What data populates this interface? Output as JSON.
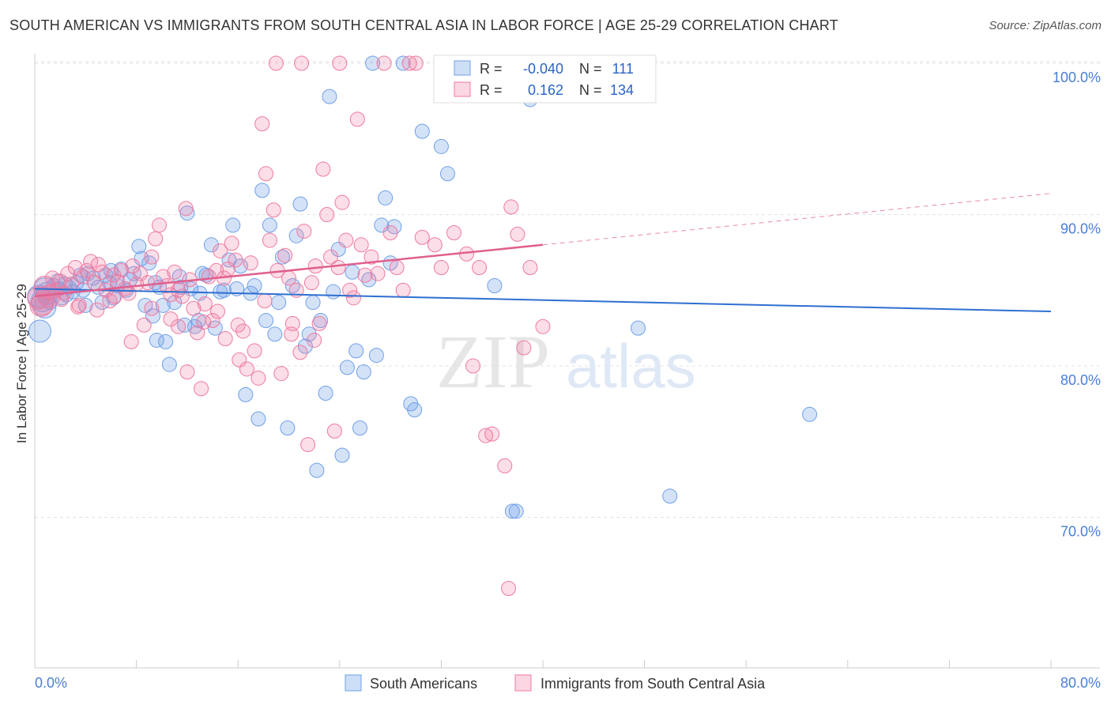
{
  "header": {
    "title": "SOUTH AMERICAN VS IMMIGRANTS FROM SOUTH CENTRAL ASIA IN LABOR FORCE | AGE 25-29 CORRELATION CHART",
    "source": "Source: ZipAtlas.com"
  },
  "watermark": {
    "zip": "ZIP",
    "atlas": "atlas"
  },
  "stats": {
    "r_label": "R =",
    "n_label": "N =",
    "rows": [
      {
        "r": "-0.040",
        "n": "111",
        "color": "#6fa0e8"
      },
      {
        "r": "0.162",
        "n": "134",
        "color": "#f07aa0"
      }
    ]
  },
  "chart_data": {
    "type": "scatter",
    "title": "SOUTH AMERICAN VS IMMIGRANTS FROM SOUTH CENTRAL ASIA IN LABOR FORCE | AGE 25-29 CORRELATION CHART",
    "xlabel": "",
    "ylabel": "In Labor Force | Age 25-29",
    "xlim": [
      0,
      80
    ],
    "ylim": [
      60,
      101.5
    ],
    "x_tick_labels": [
      "0.0%",
      "80.0%"
    ],
    "y_ticks": [
      70,
      80,
      90,
      100
    ],
    "y_tick_labels": [
      "70.0%",
      "80.0%",
      "90.0%",
      "100.0%"
    ],
    "grid": true,
    "legend_position": "bottom",
    "series": [
      {
        "name": "South Americans",
        "color": "#6fa0e8",
        "fill": "rgba(111,160,232,0.30)",
        "trend": {
          "x": [
            0,
            80
          ],
          "y": [
            85.1,
            83.6
          ],
          "dashed_from": null
        },
        "points": [
          [
            0.3,
            84.6
          ],
          [
            0.4,
            82.3
          ],
          [
            0.6,
            84.3
          ],
          [
            0.8,
            85.1
          ],
          [
            1.0,
            84.8
          ],
          [
            1.2,
            84.2
          ],
          [
            1.5,
            85.3
          ],
          [
            1.8,
            85.6
          ],
          [
            2.1,
            84.5
          ],
          [
            2.4,
            85.4
          ],
          [
            2.7,
            85.2
          ],
          [
            3.0,
            84.9
          ],
          [
            3.3,
            85.5
          ],
          [
            3.6,
            86.0
          ],
          [
            4.0,
            84.0
          ],
          [
            4.2,
            86.1
          ],
          [
            4.6,
            85.8
          ],
          [
            5.0,
            85.2
          ],
          [
            5.3,
            84.2
          ],
          [
            5.6,
            86.0
          ],
          [
            5.9,
            85.5
          ],
          [
            6.2,
            84.5
          ],
          [
            6.5,
            85.3
          ],
          [
            6.8,
            86.4
          ],
          [
            7.2,
            85.0
          ],
          [
            7.5,
            85.7
          ],
          [
            7.8,
            86.1
          ],
          [
            8.2,
            87.9
          ],
          [
            8.4,
            87.1
          ],
          [
            8.7,
            84.0
          ],
          [
            9.0,
            86.8
          ],
          [
            9.3,
            83.3
          ],
          [
            9.6,
            81.7
          ],
          [
            9.8,
            85.2
          ],
          [
            10.1,
            84.0
          ],
          [
            10.3,
            81.6
          ],
          [
            10.6,
            80.1
          ],
          [
            11.0,
            84.2
          ],
          [
            11.4,
            85.9
          ],
          [
            11.8,
            82.7
          ],
          [
            12.0,
            90.1
          ],
          [
            12.3,
            85.1
          ],
          [
            12.6,
            82.6
          ],
          [
            12.9,
            83.0
          ],
          [
            13.2,
            86.1
          ],
          [
            13.5,
            86.0
          ],
          [
            13.9,
            88.0
          ],
          [
            14.2,
            82.5
          ],
          [
            14.6,
            84.9
          ],
          [
            14.9,
            85.0
          ],
          [
            15.3,
            87.0
          ],
          [
            15.6,
            89.3
          ],
          [
            15.9,
            85.1
          ],
          [
            16.2,
            86.6
          ],
          [
            16.6,
            78.1
          ],
          [
            17.0,
            84.8
          ],
          [
            17.3,
            85.3
          ],
          [
            17.6,
            76.5
          ],
          [
            17.9,
            91.6
          ],
          [
            18.2,
            83.0
          ],
          [
            18.5,
            89.3
          ],
          [
            18.9,
            82.1
          ],
          [
            19.2,
            84.2
          ],
          [
            19.5,
            87.2
          ],
          [
            19.9,
            75.9
          ],
          [
            20.3,
            85.3
          ],
          [
            20.6,
            88.6
          ],
          [
            20.9,
            90.7
          ],
          [
            21.3,
            81.3
          ],
          [
            21.6,
            82.1
          ],
          [
            21.9,
            84.2
          ],
          [
            22.2,
            73.1
          ],
          [
            22.5,
            83.0
          ],
          [
            22.9,
            78.2
          ],
          [
            23.2,
            97.8
          ],
          [
            23.5,
            84.9
          ],
          [
            23.9,
            87.7
          ],
          [
            24.2,
            74.1
          ],
          [
            24.6,
            79.9
          ],
          [
            25.0,
            86.2
          ],
          [
            25.3,
            81.0
          ],
          [
            25.6,
            75.9
          ],
          [
            25.9,
            79.6
          ],
          [
            26.3,
            85.7
          ],
          [
            26.6,
            100.0
          ],
          [
            26.9,
            80.7
          ],
          [
            27.3,
            89.3
          ],
          [
            27.6,
            91.1
          ],
          [
            28.0,
            86.8
          ],
          [
            28.3,
            89.2
          ],
          [
            29.0,
            100.0
          ],
          [
            29.6,
            77.5
          ],
          [
            29.9,
            77.1
          ],
          [
            30.5,
            95.5
          ],
          [
            32.0,
            94.5
          ],
          [
            32.5,
            92.7
          ],
          [
            36.2,
            85.3
          ],
          [
            37.6,
            70.4
          ],
          [
            37.9,
            70.4
          ],
          [
            39.0,
            97.6
          ],
          [
            47.5,
            82.5
          ],
          [
            50.0,
            71.4
          ],
          [
            61.0,
            76.8
          ],
          [
            9.5,
            85.5
          ],
          [
            11.5,
            85.2
          ],
          [
            13.0,
            84.8
          ],
          [
            6.0,
            86.3
          ],
          [
            3.8,
            85.0
          ],
          [
            2.5,
            84.7
          ],
          [
            1.9,
            85.1
          ],
          [
            0.8,
            83.9
          ]
        ]
      },
      {
        "name": "Immigrants from South Central Asia",
        "color": "#f07aa0",
        "fill": "rgba(240,122,160,0.25)",
        "trend": {
          "x": [
            0,
            80
          ],
          "y": [
            84.6,
            91.4
          ],
          "dashed_from": 40
        },
        "points": [
          [
            0.3,
            84.5
          ],
          [
            0.5,
            84.0
          ],
          [
            0.8,
            85.2
          ],
          [
            1.1,
            84.6
          ],
          [
            1.4,
            85.8
          ],
          [
            1.7,
            85.0
          ],
          [
            2.0,
            85.6
          ],
          [
            2.3,
            84.8
          ],
          [
            2.6,
            86.1
          ],
          [
            2.9,
            85.4
          ],
          [
            3.2,
            86.5
          ],
          [
            3.5,
            84.0
          ],
          [
            3.8,
            85.9
          ],
          [
            4.1,
            86.3
          ],
          [
            4.4,
            86.9
          ],
          [
            4.7,
            85.5
          ],
          [
            5.0,
            86.7
          ],
          [
            5.3,
            86.2
          ],
          [
            5.6,
            85.0
          ],
          [
            5.9,
            84.3
          ],
          [
            6.2,
            86.0
          ],
          [
            6.5,
            85.6
          ],
          [
            6.8,
            86.3
          ],
          [
            7.1,
            85.1
          ],
          [
            7.4,
            84.8
          ],
          [
            7.7,
            86.6
          ],
          [
            8.0,
            85.4
          ],
          [
            8.3,
            86.1
          ],
          [
            8.6,
            82.7
          ],
          [
            8.9,
            85.5
          ],
          [
            9.2,
            87.2
          ],
          [
            9.5,
            88.4
          ],
          [
            9.8,
            89.3
          ],
          [
            10.1,
            85.9
          ],
          [
            10.4,
            85.3
          ],
          [
            10.7,
            84.7
          ],
          [
            11.0,
            86.2
          ],
          [
            11.3,
            85.0
          ],
          [
            11.6,
            84.6
          ],
          [
            11.9,
            90.4
          ],
          [
            12.2,
            85.7
          ],
          [
            12.5,
            83.8
          ],
          [
            12.8,
            82.2
          ],
          [
            13.1,
            78.5
          ],
          [
            13.4,
            84.1
          ],
          [
            13.7,
            85.9
          ],
          [
            14.0,
            83.0
          ],
          [
            14.3,
            86.3
          ],
          [
            14.6,
            87.6
          ],
          [
            14.9,
            85.8
          ],
          [
            15.2,
            86.4
          ],
          [
            15.5,
            88.1
          ],
          [
            15.8,
            87.0
          ],
          [
            16.1,
            80.4
          ],
          [
            16.4,
            82.3
          ],
          [
            16.7,
            79.8
          ],
          [
            17.0,
            86.8
          ],
          [
            17.3,
            81.0
          ],
          [
            17.6,
            79.2
          ],
          [
            17.9,
            96.0
          ],
          [
            18.2,
            92.7
          ],
          [
            18.5,
            88.3
          ],
          [
            18.8,
            90.3
          ],
          [
            19.1,
            86.3
          ],
          [
            19.4,
            79.5
          ],
          [
            19.7,
            87.3
          ],
          [
            20.0,
            85.8
          ],
          [
            20.3,
            82.8
          ],
          [
            20.6,
            85.0
          ],
          [
            20.9,
            80.9
          ],
          [
            21.2,
            88.9
          ],
          [
            21.5,
            74.8
          ],
          [
            21.8,
            85.5
          ],
          [
            22.1,
            86.6
          ],
          [
            22.4,
            82.8
          ],
          [
            22.7,
            93.0
          ],
          [
            23.0,
            90.0
          ],
          [
            23.3,
            87.2
          ],
          [
            23.6,
            75.7
          ],
          [
            23.9,
            86.5
          ],
          [
            24.2,
            90.8
          ],
          [
            24.5,
            88.3
          ],
          [
            24.8,
            85.0
          ],
          [
            25.1,
            84.5
          ],
          [
            25.4,
            96.3
          ],
          [
            25.7,
            88.0
          ],
          [
            26.0,
            86.0
          ],
          [
            26.5,
            87.2
          ],
          [
            27.0,
            86.1
          ],
          [
            27.5,
            100.0
          ],
          [
            28.0,
            88.8
          ],
          [
            28.5,
            86.5
          ],
          [
            29.0,
            85.0
          ],
          [
            29.5,
            100.0
          ],
          [
            30.5,
            88.5
          ],
          [
            31.5,
            88.0
          ],
          [
            32.0,
            86.5
          ],
          [
            33.0,
            88.8
          ],
          [
            33.5,
            100.0
          ],
          [
            34.0,
            87.4
          ],
          [
            34.5,
            80.0
          ],
          [
            35.0,
            86.5
          ],
          [
            35.5,
            75.4
          ],
          [
            36.0,
            75.5
          ],
          [
            37.0,
            73.4
          ],
          [
            37.5,
            90.5
          ],
          [
            38.0,
            88.7
          ],
          [
            39.0,
            86.5
          ],
          [
            40.0,
            82.6
          ],
          [
            38.5,
            81.2
          ],
          [
            37.3,
            65.3
          ],
          [
            19.0,
            100.0
          ],
          [
            21.0,
            100.0
          ],
          [
            24.0,
            100.0
          ],
          [
            30.0,
            100.0
          ],
          [
            35.2,
            100.0
          ],
          [
            15.0,
            81.8
          ],
          [
            16.0,
            82.7
          ],
          [
            20.2,
            82.1
          ],
          [
            22.0,
            81.7
          ],
          [
            11.3,
            82.6
          ],
          [
            9.2,
            83.8
          ],
          [
            7.6,
            81.6
          ],
          [
            6.3,
            84.6
          ],
          [
            4.9,
            83.7
          ],
          [
            3.4,
            83.9
          ],
          [
            2.1,
            84.4
          ],
          [
            1.3,
            84.9
          ],
          [
            0.6,
            84.1
          ],
          [
            18.1,
            84.3
          ],
          [
            14.4,
            83.6
          ],
          [
            13.3,
            82.9
          ],
          [
            12.0,
            79.6
          ],
          [
            10.7,
            83.1
          ]
        ]
      }
    ]
  },
  "legend": {
    "items": [
      {
        "label": "South Americans",
        "color": "#6fa0e8"
      },
      {
        "label": "Immigrants from South Central Asia",
        "color": "#f07aa0"
      }
    ]
  }
}
